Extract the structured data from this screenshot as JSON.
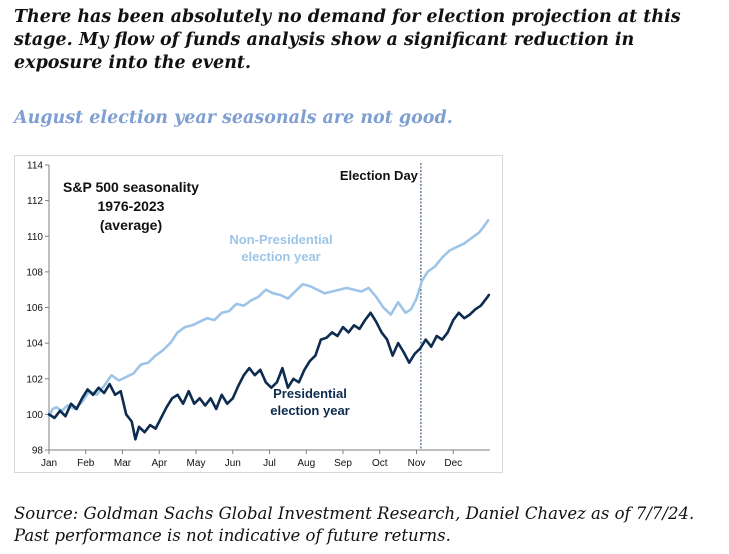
{
  "headline": "There has been absolutely no demand for election projection at this stage. My flow of funds analysis show a significant reduction in exposure into the event.",
  "subhead": "August election year seasonals are not good.",
  "colors": {
    "headline": "#111111",
    "subhead": "#7f9fd2",
    "non_presidential": "#9ec5e8",
    "presidential": "#0d2c4f",
    "election_line": "#1f3c66"
  },
  "source_lines": [
    "Source: Goldman Sachs Global Investment Research, Daniel Chavez  as of 7/7/24.",
    "Past performance is not indicative of future returns."
  ],
  "chart_data": {
    "type": "line",
    "title_lines": [
      "S&P 500 seasonality",
      "1976-2023",
      "(average)"
    ],
    "xlabel": "",
    "ylabel": "",
    "x_range": [
      0,
      12
    ],
    "ylim": [
      98,
      114
    ],
    "yticks": [
      98,
      100,
      102,
      104,
      106,
      108,
      110,
      112,
      114
    ],
    "month_labels": [
      "Jan",
      "Feb",
      "Mar",
      "Apr",
      "May",
      "Jun",
      "Jul",
      "Aug",
      "Sep",
      "Oct",
      "Nov",
      "Dec"
    ],
    "grid": false,
    "vertical_marker": {
      "label": "Election Day",
      "x": 10.12
    },
    "series": [
      {
        "name": "Non-Presidential election year",
        "label_lines": [
          "Non-Presidential",
          "election year"
        ],
        "x": [
          0,
          0.1,
          0.2,
          0.35,
          0.5,
          0.7,
          0.9,
          1.1,
          1.3,
          1.5,
          1.7,
          1.9,
          2.1,
          2.3,
          2.5,
          2.7,
          2.9,
          3.1,
          3.3,
          3.5,
          3.7,
          3.9,
          4.1,
          4.3,
          4.5,
          4.7,
          4.9,
          5.1,
          5.3,
          5.5,
          5.7,
          5.9,
          6.1,
          6.3,
          6.5,
          6.7,
          6.9,
          7.1,
          7.3,
          7.5,
          7.7,
          7.9,
          8.1,
          8.3,
          8.5,
          8.7,
          8.9,
          9.1,
          9.3,
          9.5,
          9.7,
          9.85,
          10,
          10.15,
          10.3,
          10.5,
          10.7,
          10.9,
          11.1,
          11.3,
          11.5,
          11.7,
          11.85,
          11.95
        ],
        "y": [
          99.9,
          100.3,
          100.4,
          100.2,
          100.5,
          100.3,
          100.7,
          101.3,
          101.1,
          101.6,
          102.2,
          101.9,
          102.1,
          102.3,
          102.8,
          102.9,
          103.3,
          103.6,
          104.0,
          104.6,
          104.9,
          105.0,
          105.2,
          105.4,
          105.3,
          105.7,
          105.8,
          106.2,
          106.1,
          106.4,
          106.6,
          107.0,
          106.8,
          106.7,
          106.5,
          106.9,
          107.3,
          107.2,
          107.0,
          106.8,
          106.9,
          107.0,
          107.1,
          107.0,
          106.9,
          107.1,
          106.6,
          106.0,
          105.6,
          106.3,
          105.7,
          105.9,
          106.5,
          107.5,
          108.0,
          108.3,
          108.8,
          109.2,
          109.4,
          109.6,
          109.9,
          110.2,
          110.6,
          110.9
        ]
      },
      {
        "name": "Presidential election year",
        "label_lines": [
          "Presidential",
          "election year"
        ],
        "x": [
          0,
          0.15,
          0.3,
          0.45,
          0.6,
          0.75,
          0.9,
          1.05,
          1.2,
          1.35,
          1.5,
          1.65,
          1.8,
          1.95,
          2.1,
          2.25,
          2.35,
          2.45,
          2.6,
          2.75,
          2.9,
          3.05,
          3.2,
          3.35,
          3.5,
          3.65,
          3.8,
          3.95,
          4.1,
          4.25,
          4.4,
          4.55,
          4.7,
          4.85,
          5.0,
          5.15,
          5.3,
          5.45,
          5.6,
          5.75,
          5.9,
          6.05,
          6.2,
          6.35,
          6.5,
          6.65,
          6.8,
          6.95,
          7.1,
          7.25,
          7.4,
          7.55,
          7.7,
          7.85,
          8.0,
          8.15,
          8.3,
          8.45,
          8.6,
          8.75,
          8.9,
          9.05,
          9.2,
          9.35,
          9.5,
          9.65,
          9.8,
          9.95,
          10.1,
          10.25,
          10.4,
          10.55,
          10.7,
          10.85,
          11.0,
          11.15,
          11.3,
          11.45,
          11.6,
          11.75,
          11.9,
          11.97
        ],
        "y": [
          100.0,
          99.8,
          100.2,
          99.9,
          100.6,
          100.3,
          100.9,
          101.4,
          101.1,
          101.5,
          101.2,
          101.7,
          101.1,
          101.3,
          100.0,
          99.6,
          98.6,
          99.3,
          99.0,
          99.4,
          99.2,
          99.8,
          100.4,
          100.9,
          101.1,
          100.6,
          101.3,
          100.6,
          100.9,
          100.5,
          100.9,
          100.3,
          101.1,
          100.6,
          100.9,
          101.6,
          102.2,
          102.6,
          102.2,
          102.5,
          101.8,
          101.5,
          101.8,
          102.6,
          101.5,
          102.0,
          101.8,
          102.5,
          103.0,
          103.3,
          104.2,
          104.3,
          104.6,
          104.4,
          104.9,
          104.6,
          105.0,
          104.8,
          105.3,
          105.7,
          105.2,
          104.6,
          104.2,
          103.3,
          104.0,
          103.5,
          102.9,
          103.4,
          103.7,
          104.2,
          103.8,
          104.4,
          104.2,
          104.6,
          105.3,
          105.7,
          105.4,
          105.6,
          105.9,
          106.1,
          106.5,
          106.7
        ]
      }
    ]
  }
}
